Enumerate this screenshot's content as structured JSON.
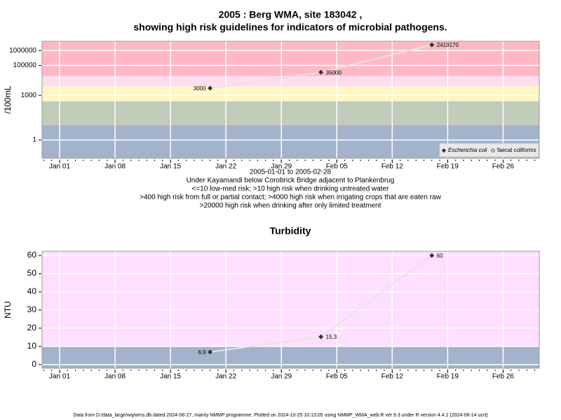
{
  "chart_data": [
    {
      "type": "line",
      "title": [
        "2005 : Berg WMA, site 183042 ,",
        "showing high risk guidelines for indicators of microbial pathogens."
      ],
      "ylabel": "/100mL",
      "log_scale": true,
      "x": [
        "2005-01-20",
        "2005-02-03",
        "2005-02-17"
      ],
      "series": [
        {
          "name": "Escherichia coli",
          "color": "#333333",
          "values": [
            3000,
            35000,
            2419170
          ]
        }
      ],
      "legend": [
        {
          "name": "Escherichia coli",
          "marker": "filled"
        },
        {
          "name": "faecal coliforms",
          "marker": "open"
        }
      ],
      "line_color": "#e4e4e4",
      "xlim": [
        "2005-01-01",
        "2005-02-28"
      ],
      "xticks": [
        {
          "value": "2005-01-01",
          "label": "Jan 01"
        },
        {
          "value": "2005-01-08",
          "label": "Jan 08"
        },
        {
          "value": "2005-01-15",
          "label": "Jan 15"
        },
        {
          "value": "2005-01-22",
          "label": "Jan 22"
        },
        {
          "value": "2005-01-29",
          "label": "Jan 29"
        },
        {
          "value": "2005-02-05",
          "label": "Feb 05"
        },
        {
          "value": "2005-02-12",
          "label": "Feb 12"
        },
        {
          "value": "2005-02-19",
          "label": "Feb 19"
        },
        {
          "value": "2005-02-26",
          "label": "Feb 26"
        }
      ],
      "ylim": [
        0.06,
        4200000
      ],
      "yticks": [
        1,
        1000,
        100000,
        1000000
      ],
      "bands": [
        10,
        400,
        4000,
        20000
      ],
      "band_colors": [
        "#a3b3cc",
        "#c3cbbb",
        "#fff6c6",
        "#ffdcef",
        "#ffb8c4"
      ],
      "notes": [
        "2005-01-01 to 2005-02-28",
        "Under Kayamandi below Corobrick Bridge adjacent to Plankenbrug",
        "<=10 low-med risk; >10 high risk when drinking untreated water",
        ">400 high risk from full or partial contact; >4000 high risk when irrigating crops that are eaten raw",
        ">20000 high risk when drinking after only limited treatment"
      ],
      "grid": true
    },
    {
      "type": "line",
      "title": [
        "Turbidity"
      ],
      "ylabel": "NTU",
      "log_scale": false,
      "x": [
        "2005-01-20",
        "2005-02-03",
        "2005-02-17"
      ],
      "series": [
        {
          "name": "Turbidity",
          "color": "#333333",
          "values": [
            6.9,
            15.3,
            60
          ]
        }
      ],
      "line_color": "#e4e4e4",
      "xlim": [
        "2005-01-01",
        "2005-02-28"
      ],
      "xticks": [
        {
          "value": "2005-01-01",
          "label": "Jan 01"
        },
        {
          "value": "2005-01-08",
          "label": "Jan 08"
        },
        {
          "value": "2005-01-15",
          "label": "Jan 15"
        },
        {
          "value": "2005-01-22",
          "label": "Jan 22"
        },
        {
          "value": "2005-01-29",
          "label": "Jan 29"
        },
        {
          "value": "2005-02-05",
          "label": "Feb 05"
        },
        {
          "value": "2005-02-12",
          "label": "Feb 12"
        },
        {
          "value": "2005-02-19",
          "label": "Feb 19"
        },
        {
          "value": "2005-02-26",
          "label": "Feb 26"
        }
      ],
      "ylim": [
        -2,
        62.3
      ],
      "yticks": [
        0,
        10,
        20,
        30,
        40,
        50,
        60
      ],
      "bands": [
        10
      ],
      "band_colors": [
        "#a3b3cc",
        "#ffdfff"
      ],
      "grid": true
    }
  ],
  "footer": "Data from D:/data_large/wq/wms.db dated 2024-08-27, mainly NMMP programme. Plotted on 2024-10-25 10:13:05 using NMMP_WMA_web.R ver 9.3 under R version 4.4.1 (2024-06-14 ucrt)"
}
